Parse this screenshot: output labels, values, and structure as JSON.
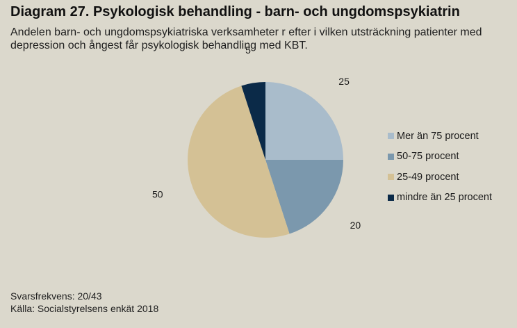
{
  "title": "Diagram 27. Psykologisk behandling - barn- och ungdomspsykiatrin",
  "subtitle": "Andelen barn- och ungdomspsykiatriska verksamheter r efter i  vilken utsträckning patienter med depression och ångest får psykologisk behandling med KBT.",
  "footer": {
    "response_rate": "Svarsfrekvens: 20/43",
    "source": "Källa: Socialstyrelsens enkät 2018"
  },
  "chart_data": {
    "type": "pie",
    "title": "Diagram 27. Psykologisk behandling - barn- och ungdomspsykiatrin",
    "legend_position": "right",
    "slices": [
      {
        "label": "Mer än 75 procent",
        "value": 25,
        "color": "#a9bccb"
      },
      {
        "label": "50-75 procent",
        "value": 20,
        "color": "#7b98ad"
      },
      {
        "label": "25-49 procent",
        "value": 50,
        "color": "#d4c195"
      },
      {
        "label": "mindre än 25 procent",
        "value": 5,
        "color": "#0b2a48"
      }
    ]
  }
}
